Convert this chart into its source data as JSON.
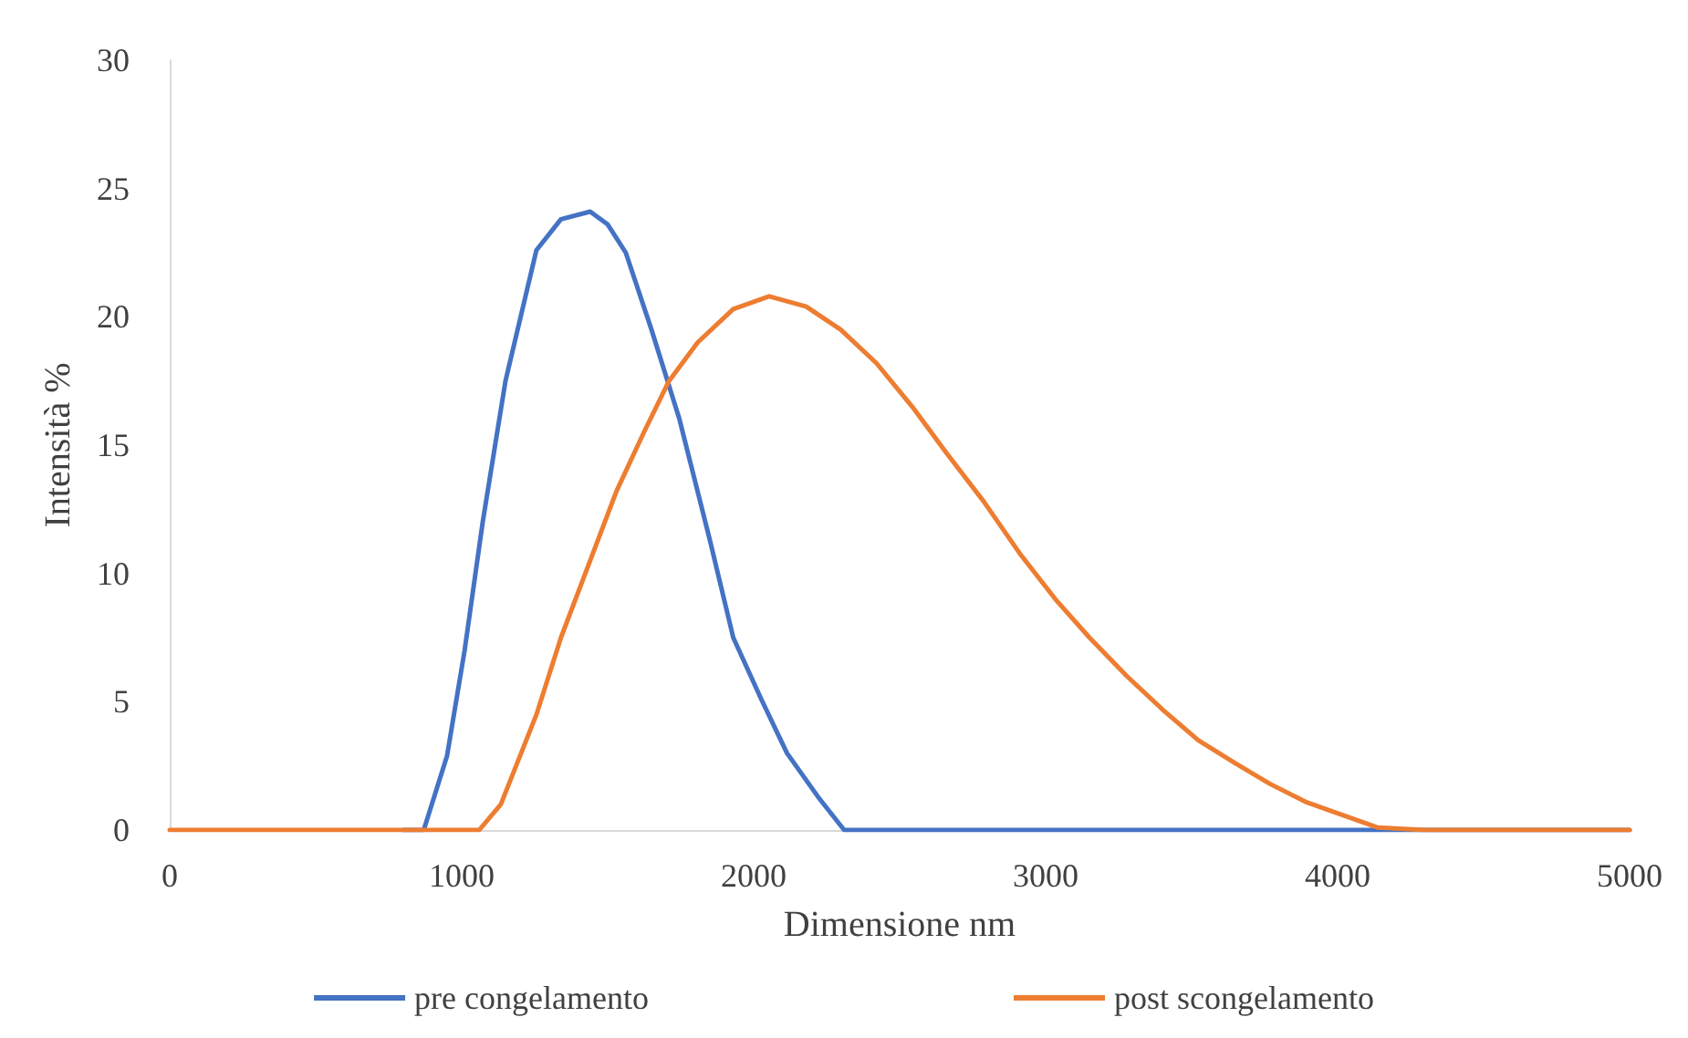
{
  "chart_data": {
    "type": "line",
    "xlabel": "Dimensione nm",
    "ylabel": "Intensità %",
    "xlim": [
      0,
      5000
    ],
    "xticks": [
      0,
      1000,
      2000,
      3000,
      4000,
      5000
    ],
    "ylim": [
      0,
      30
    ],
    "yticks": [
      0,
      5,
      10,
      15,
      20,
      25,
      30
    ],
    "grid": false,
    "legend": "bottom",
    "marker": "none",
    "line_style": "solid",
    "series": [
      {
        "name": "pre congelamento",
        "color": "#4472c4",
        "x": [
          800,
          870,
          950,
          1010,
          1072,
          1150,
          1256,
          1340,
          1440,
          1500,
          1562,
          1650,
          1746,
          1850,
          1930,
          2030,
          2114,
          2220,
          2310,
          2400,
          2600,
          2700,
          5000
        ],
        "values": [
          0,
          0,
          2.9,
          7,
          12,
          17.5,
          22.6,
          23.8,
          24.1,
          23.6,
          22.5,
          19.5,
          16,
          11.3,
          7.5,
          5,
          3,
          1.3,
          0,
          0,
          0,
          0,
          0
        ]
      },
      {
        "name": "post scongelamento",
        "color": "#ed7d31",
        "x": [
          0,
          800,
          900,
          1000,
          1060,
          1134,
          1256,
          1340,
          1440,
          1530,
          1624,
          1710,
          1808,
          1930,
          2053,
          2180,
          2298,
          2420,
          2543,
          2660,
          2788,
          2910,
          3033,
          3150,
          3278,
          3400,
          3523,
          3650,
          3768,
          3890,
          4013,
          4136,
          4300,
          4500,
          4700,
          5000
        ],
        "values": [
          0,
          0,
          0,
          0,
          0,
          1,
          4.5,
          7.5,
          10.5,
          13.2,
          15.5,
          17.5,
          19,
          20.3,
          20.8,
          20.4,
          19.5,
          18.2,
          16.5,
          14.7,
          12.8,
          10.8,
          9,
          7.5,
          6,
          4.7,
          3.5,
          2.6,
          1.8,
          1.1,
          0.6,
          0.1,
          0,
          0,
          0,
          0
        ]
      }
    ]
  }
}
